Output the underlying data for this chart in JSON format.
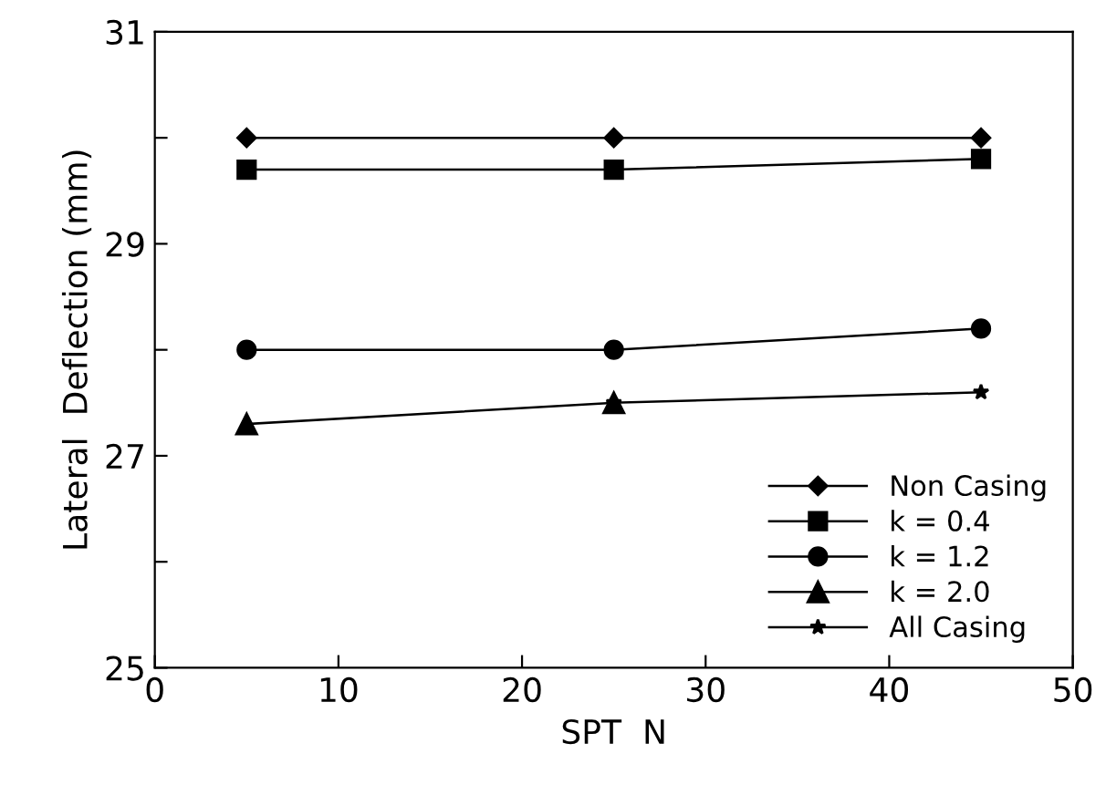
{
  "chart_data": {
    "type": "line",
    "xlabel": "SPT  N",
    "ylabel": "Lateral  Deflection (mm)",
    "x": [
      5,
      25,
      45
    ],
    "series": [
      {
        "name": "Non Casing",
        "color": "#000000",
        "marker": "diamond",
        "values": [
          30.0,
          30.0,
          30.0
        ]
      },
      {
        "name": "k = 0.4",
        "color": "#000000",
        "marker": "square",
        "values": [
          29.7,
          29.7,
          29.8
        ]
      },
      {
        "name": "k = 1.2",
        "color": "#000000",
        "marker": "circle",
        "values": [
          28.0,
          28.0,
          28.2
        ]
      },
      {
        "name": "k = 2.0",
        "color": "#000000",
        "marker": "triangle",
        "values": [
          27.3,
          27.5,
          null
        ]
      },
      {
        "name": "All Casing",
        "color": "#000000",
        "marker": "star",
        "values": [
          null,
          27.5,
          27.6
        ]
      }
    ],
    "xlim": [
      0,
      50
    ],
    "xticks": [
      0,
      10,
      20,
      30,
      40,
      50
    ],
    "ylim": [
      25,
      31
    ],
    "yticks": [
      25,
      {
        "value": 26,
        "label": null
      },
      27,
      {
        "value": 28,
        "label": null
      },
      29,
      {
        "value": 30,
        "label": null
      },
      31
    ],
    "grid": false,
    "legend": "bottom right",
    "line_style": "solid"
  }
}
